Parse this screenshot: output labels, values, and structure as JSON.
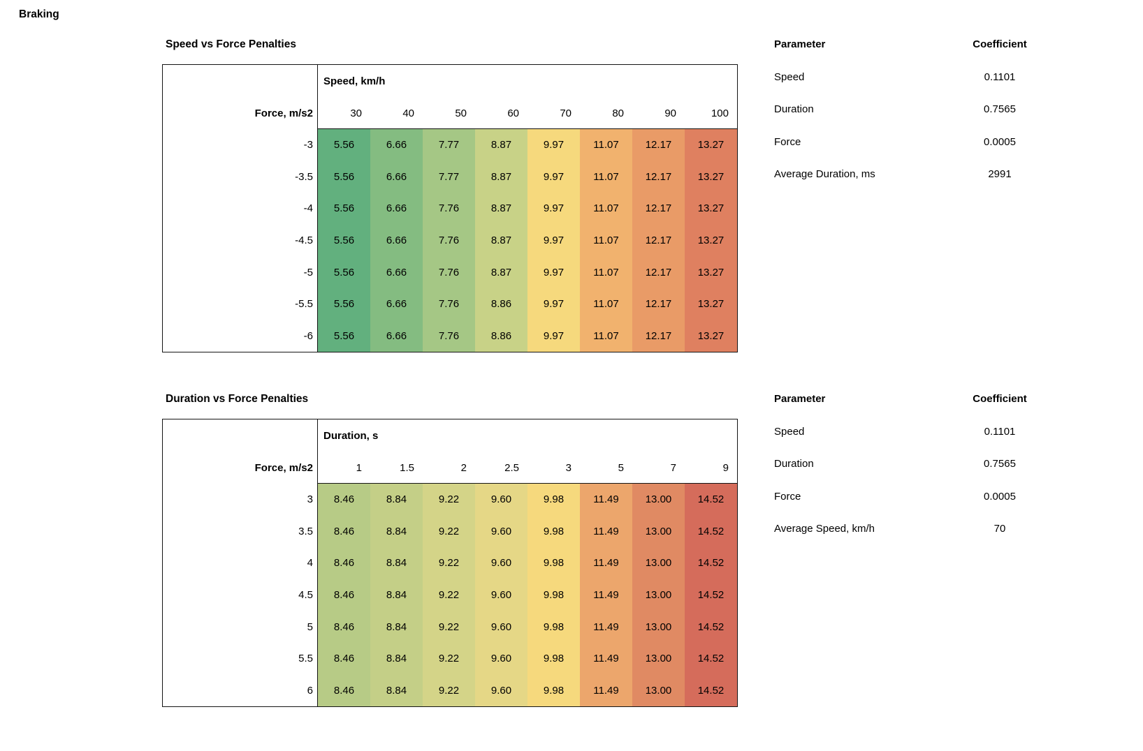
{
  "page_title": "Braking",
  "sections": [
    {
      "title": "Speed vs Force Penalties",
      "axis_header": "Speed, km/h",
      "row_header": "Force, m/s2",
      "columns": [
        "30",
        "40",
        "50",
        "60",
        "70",
        "80",
        "90",
        "100"
      ],
      "rows": [
        "-3",
        "-3.5",
        "-4",
        "-4.5",
        "-5",
        "-5.5",
        "-6"
      ],
      "cells": [
        [
          "5.56",
          "6.66",
          "7.77",
          "8.87",
          "9.97",
          "11.07",
          "12.17",
          "13.27"
        ],
        [
          "5.56",
          "6.66",
          "7.77",
          "8.87",
          "9.97",
          "11.07",
          "12.17",
          "13.27"
        ],
        [
          "5.56",
          "6.66",
          "7.76",
          "8.87",
          "9.97",
          "11.07",
          "12.17",
          "13.27"
        ],
        [
          "5.56",
          "6.66",
          "7.76",
          "8.87",
          "9.97",
          "11.07",
          "12.17",
          "13.27"
        ],
        [
          "5.56",
          "6.66",
          "7.76",
          "8.87",
          "9.97",
          "11.07",
          "12.17",
          "13.27"
        ],
        [
          "5.56",
          "6.66",
          "7.76",
          "8.86",
          "9.97",
          "11.07",
          "12.17",
          "13.27"
        ],
        [
          "5.56",
          "6.66",
          "7.76",
          "8.86",
          "9.97",
          "11.07",
          "12.17",
          "13.27"
        ]
      ],
      "column_colors": [
        "#62b07e",
        "#84bc81",
        "#a5c785",
        "#c8d287",
        "#f6d97d",
        "#f1b26e",
        "#e99b67",
        "#df8060"
      ],
      "params": {
        "name_header": "Parameter",
        "value_header": "Coefficient",
        "rows": [
          {
            "name": "Speed",
            "value": "0.1101"
          },
          {
            "name": "Duration",
            "value": "0.7565"
          },
          {
            "name": "Force",
            "value": "0.0005"
          },
          {
            "name": "Average Duration, ms",
            "value": "2991"
          }
        ]
      }
    },
    {
      "title": "Duration vs Force Penalties",
      "axis_header": "Duration, s",
      "row_header": "Force, m/s2",
      "columns": [
        "1",
        "1.5",
        "2",
        "2.5",
        "3",
        "5",
        "7",
        "9"
      ],
      "rows": [
        "3",
        "3.5",
        "4",
        "4.5",
        "5",
        "5.5",
        "6"
      ],
      "cells": [
        [
          "8.46",
          "8.84",
          "9.22",
          "9.60",
          "9.98",
          "11.49",
          "13.00",
          "14.52"
        ],
        [
          "8.46",
          "8.84",
          "9.22",
          "9.60",
          "9.98",
          "11.49",
          "13.00",
          "14.52"
        ],
        [
          "8.46",
          "8.84",
          "9.22",
          "9.60",
          "9.98",
          "11.49",
          "13.00",
          "14.52"
        ],
        [
          "8.46",
          "8.84",
          "9.22",
          "9.60",
          "9.98",
          "11.49",
          "13.00",
          "14.52"
        ],
        [
          "8.46",
          "8.84",
          "9.22",
          "9.60",
          "9.98",
          "11.49",
          "13.00",
          "14.52"
        ],
        [
          "8.46",
          "8.84",
          "9.22",
          "9.60",
          "9.98",
          "11.49",
          "13.00",
          "14.52"
        ],
        [
          "8.46",
          "8.84",
          "9.22",
          "9.60",
          "9.98",
          "11.49",
          "13.00",
          "14.52"
        ]
      ],
      "column_colors": [
        "#b7cb86",
        "#c4cf87",
        "#d4d488",
        "#e5d786",
        "#f6d97d",
        "#eca66c",
        "#e08a63",
        "#d56c5b"
      ],
      "params": {
        "name_header": "Parameter",
        "value_header": "Coefficient",
        "rows": [
          {
            "name": "Speed",
            "value": "0.1101"
          },
          {
            "name": "Duration",
            "value": "0.7565"
          },
          {
            "name": "Force",
            "value": "0.0005"
          },
          {
            "name": "Average Speed, km/h",
            "value": "70"
          }
        ]
      }
    }
  ],
  "chart_data": [
    {
      "type": "heatmap",
      "title": "Speed vs Force Penalties",
      "xlabel": "Speed, km/h",
      "ylabel": "Force, m/s2",
      "x": [
        30,
        40,
        50,
        60,
        70,
        80,
        90,
        100
      ],
      "y": [
        -3,
        -3.5,
        -4,
        -4.5,
        -5,
        -5.5,
        -6
      ],
      "values": [
        [
          5.56,
          6.66,
          7.77,
          8.87,
          9.97,
          11.07,
          12.17,
          13.27
        ],
        [
          5.56,
          6.66,
          7.77,
          8.87,
          9.97,
          11.07,
          12.17,
          13.27
        ],
        [
          5.56,
          6.66,
          7.76,
          8.87,
          9.97,
          11.07,
          12.17,
          13.27
        ],
        [
          5.56,
          6.66,
          7.76,
          8.87,
          9.97,
          11.07,
          12.17,
          13.27
        ],
        [
          5.56,
          6.66,
          7.76,
          8.87,
          9.97,
          11.07,
          12.17,
          13.27
        ],
        [
          5.56,
          6.66,
          7.76,
          8.86,
          9.97,
          11.07,
          12.17,
          13.27
        ],
        [
          5.56,
          6.66,
          7.76,
          8.86,
          9.97,
          11.07,
          12.17,
          13.27
        ]
      ],
      "color_scale": "green-to-red by column",
      "annotations": {
        "Speed": 0.1101,
        "Duration": 0.7565,
        "Force": 0.0005,
        "Average Duration, ms": 2991
      }
    },
    {
      "type": "heatmap",
      "title": "Duration vs Force Penalties",
      "xlabel": "Duration, s",
      "ylabel": "Force, m/s2",
      "x": [
        1,
        1.5,
        2,
        2.5,
        3,
        5,
        7,
        9
      ],
      "y": [
        3,
        3.5,
        4,
        4.5,
        5,
        5.5,
        6
      ],
      "values": [
        [
          8.46,
          8.84,
          9.22,
          9.6,
          9.98,
          11.49,
          13.0,
          14.52
        ],
        [
          8.46,
          8.84,
          9.22,
          9.6,
          9.98,
          11.49,
          13.0,
          14.52
        ],
        [
          8.46,
          8.84,
          9.22,
          9.6,
          9.98,
          11.49,
          13.0,
          14.52
        ],
        [
          8.46,
          8.84,
          9.22,
          9.6,
          9.98,
          11.49,
          13.0,
          14.52
        ],
        [
          8.46,
          8.84,
          9.22,
          9.6,
          9.98,
          11.49,
          13.0,
          14.52
        ],
        [
          8.46,
          8.84,
          9.22,
          9.6,
          9.98,
          11.49,
          13.0,
          14.52
        ],
        [
          8.46,
          8.84,
          9.22,
          9.6,
          9.98,
          11.49,
          13.0,
          14.52
        ]
      ],
      "color_scale": "green-to-red by column",
      "annotations": {
        "Speed": 0.1101,
        "Duration": 0.7565,
        "Force": 0.0005,
        "Average Speed, km/h": 70
      }
    }
  ]
}
